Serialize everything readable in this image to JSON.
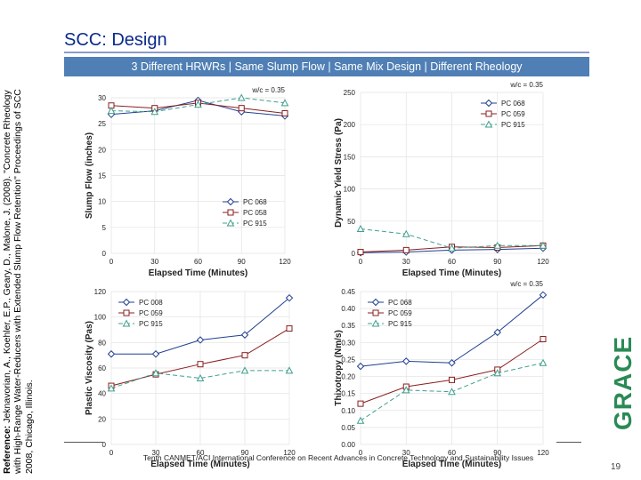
{
  "slide": {
    "title": "SCC: Design",
    "banner": "3 Different HRWRs | Same Slump Flow | Same Mix Design | Different Rheology",
    "reference_label": "Reference:",
    "reference_text": " Jeknavorian, A., Koehler, E.P., Geary, D., Malone, J. (2008). \"Concrete Rheology with High-Range Water-Reducers with Extended Slump Flow Retention\" Proceedings of SCC 2008, Chicago, Illinois.",
    "footer": "Tenth CANMET/ACI International Conference on Recent Advances in Concrete Technology and Sustainability Issues",
    "page_number": "19",
    "logo": "GRACE"
  },
  "colors": {
    "title": "#0a2a8c",
    "banner_bg": "#4f7fb5",
    "series": [
      "#1f3f8f",
      "#8a1f1f",
      "#3f9f8f"
    ],
    "logo": "#2a8a55"
  },
  "chart_data": [
    {
      "type": "line",
      "title": "",
      "annotation": "w/c = 0.35",
      "xlabel": "Elapsed Time (Minutes)",
      "ylabel": "Slump Flow (inches)",
      "xlim": [
        0,
        120
      ],
      "ylim": [
        0,
        30
      ],
      "xticks": [
        0,
        30,
        60,
        90,
        120
      ],
      "yticks": [
        0,
        5,
        10,
        15,
        20,
        25,
        30
      ],
      "legend_position": "bottom-right",
      "series": [
        {
          "name": "PC 068",
          "marker": "diamond",
          "x": [
            0,
            30,
            60,
            90,
            120
          ],
          "values": [
            26.8,
            27.5,
            29.5,
            27.3,
            26.5
          ]
        },
        {
          "name": "PC 058",
          "marker": "square",
          "x": [
            0,
            30,
            60,
            90,
            120
          ],
          "values": [
            28.5,
            28.0,
            29.0,
            28.0,
            27.0
          ]
        },
        {
          "name": "PC 915",
          "marker": "triangle",
          "x": [
            0,
            30,
            60,
            90,
            120
          ],
          "values": [
            27.5,
            27.3,
            28.7,
            30.0,
            29.0
          ]
        }
      ]
    },
    {
      "type": "line",
      "title": "",
      "annotation": "w/c = 0.35",
      "xlabel": "Elapsed Time (Minutes)",
      "ylabel": "Dynamic Yield Stress (Pa)",
      "xlim": [
        0,
        120
      ],
      "ylim": [
        0,
        250
      ],
      "xticks": [
        0,
        30,
        60,
        90,
        120
      ],
      "yticks": [
        0,
        50,
        100,
        150,
        200,
        250
      ],
      "legend_position": "top-right",
      "series": [
        {
          "name": "PC 068",
          "marker": "diamond",
          "x": [
            0,
            30,
            60,
            90,
            120
          ],
          "values": [
            1,
            2,
            5,
            6,
            8
          ]
        },
        {
          "name": "PC 059",
          "marker": "square",
          "x": [
            0,
            30,
            60,
            90,
            120
          ],
          "values": [
            2,
            5,
            10,
            9,
            12
          ]
        },
        {
          "name": "PC 915",
          "marker": "triangle",
          "x": [
            0,
            30,
            60,
            90,
            120
          ],
          "values": [
            38,
            30,
            8,
            12,
            12
          ]
        }
      ]
    },
    {
      "type": "line",
      "title": "",
      "xlabel": "Elapsed Time (Minutes)",
      "ylabel": "Plastic Viscosity (Pas)",
      "xlim": [
        0,
        120
      ],
      "ylim": [
        0,
        120
      ],
      "xticks": [
        0,
        30,
        60,
        90,
        120
      ],
      "yticks": [
        0,
        20,
        40,
        60,
        80,
        100,
        120
      ],
      "legend_position": "top-left",
      "series": [
        {
          "name": "PC 008",
          "marker": "diamond",
          "x": [
            0,
            30,
            60,
            90,
            120
          ],
          "values": [
            71,
            71,
            82,
            86,
            115
          ]
        },
        {
          "name": "PC 059",
          "marker": "square",
          "x": [
            0,
            30,
            60,
            90,
            120
          ],
          "values": [
            46,
            55,
            63,
            70,
            91
          ]
        },
        {
          "name": "PC 915",
          "marker": "triangle",
          "x": [
            0,
            30,
            60,
            90,
            120
          ],
          "values": [
            44,
            56,
            52,
            58,
            58
          ]
        }
      ]
    },
    {
      "type": "line",
      "title": "",
      "annotation": "w/c = 0.35",
      "xlabel": "Elapsed Time (Minutes)",
      "ylabel": "Thixotropy (Nm/s)",
      "xlim": [
        0,
        120
      ],
      "ylim": [
        0,
        0.45
      ],
      "xticks": [
        0,
        30,
        60,
        90,
        120
      ],
      "yticks": [
        0.0,
        0.05,
        0.1,
        0.15,
        0.2,
        0.25,
        0.3,
        0.35,
        0.4,
        0.45
      ],
      "legend_position": "top-left",
      "series": [
        {
          "name": "PC 068",
          "marker": "diamond",
          "x": [
            0,
            30,
            60,
            90,
            120
          ],
          "values": [
            0.23,
            0.245,
            0.24,
            0.33,
            0.44
          ]
        },
        {
          "name": "PC 059",
          "marker": "square",
          "x": [
            0,
            30,
            60,
            90,
            120
          ],
          "values": [
            0.12,
            0.17,
            0.19,
            0.22,
            0.31
          ]
        },
        {
          "name": "PC 915",
          "marker": "triangle",
          "x": [
            0,
            30,
            60,
            90,
            120
          ],
          "values": [
            0.07,
            0.16,
            0.155,
            0.21,
            0.24
          ]
        }
      ]
    }
  ]
}
